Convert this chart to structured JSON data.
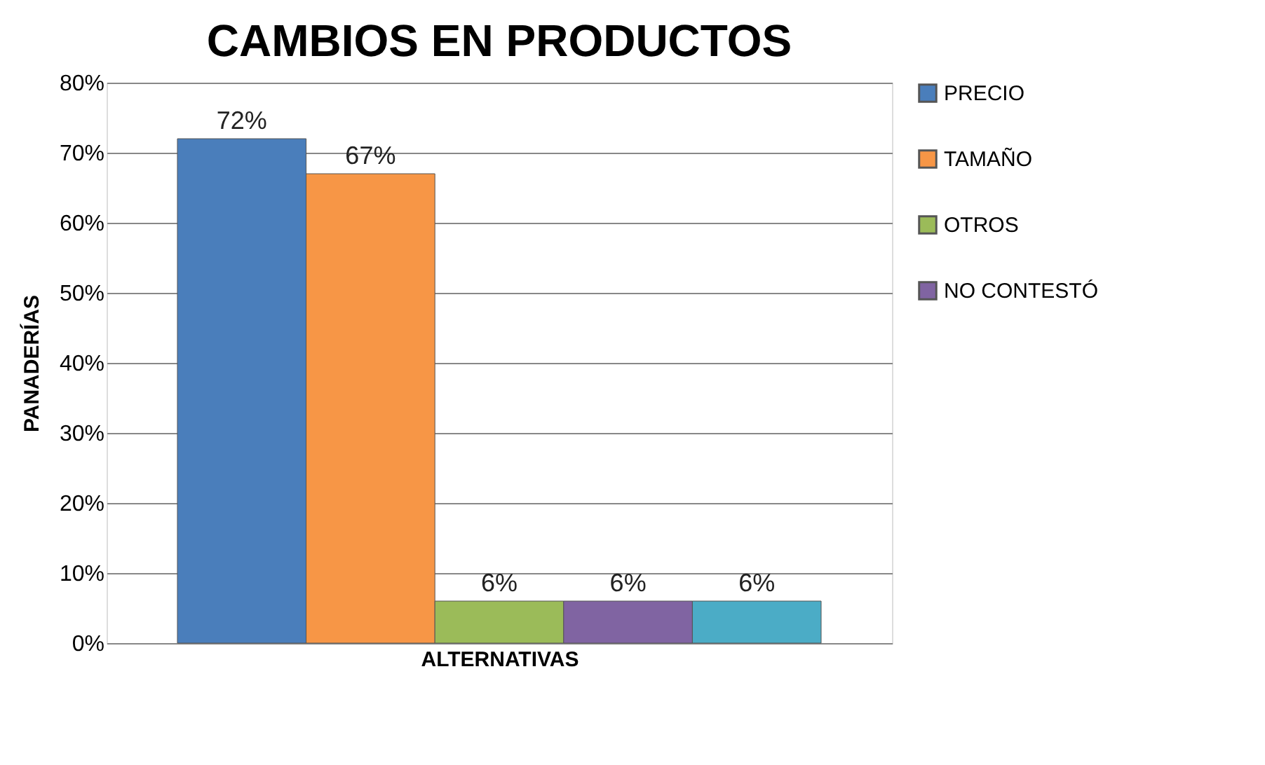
{
  "chart_data": {
    "type": "bar",
    "title": "CAMBIOS EN PRODUCTOS",
    "xlabel": "ALTERNATIVAS",
    "ylabel": "PANADERÍAS",
    "categories": [
      null
    ],
    "series": [
      {
        "name": "PRECIO",
        "color": "#4a7ebb",
        "values": [
          72
        ],
        "value_labels": [
          "72%"
        ]
      },
      {
        "name": "TAMAÑO",
        "color": "#f79646",
        "values": [
          67
        ],
        "value_labels": [
          "67%"
        ]
      },
      {
        "name": "OTROS",
        "color": "#9bbb59",
        "values": [
          6
        ],
        "value_labels": [
          "6%"
        ]
      },
      {
        "name": "NO CONTESTÓ",
        "color": "#8064a2",
        "values": [
          6
        ],
        "value_labels": [
          "6%"
        ]
      },
      {
        "color": "#4bacc6",
        "values": [
          6
        ],
        "value_labels": [
          "6%"
        ]
      }
    ],
    "ylim": [
      0,
      80
    ],
    "yticks": [
      {
        "value": 0,
        "label": "0%"
      },
      {
        "value": 10,
        "label": "10%"
      },
      {
        "value": 20,
        "label": "20%"
      },
      {
        "value": 30,
        "label": "30%"
      },
      {
        "value": 40,
        "label": "40%"
      },
      {
        "value": 50,
        "label": "50%"
      },
      {
        "value": 60,
        "label": "60%"
      },
      {
        "value": 70,
        "label": "70%"
      },
      {
        "value": 80,
        "label": "80%"
      }
    ],
    "grid": "y",
    "legend": "right"
  }
}
